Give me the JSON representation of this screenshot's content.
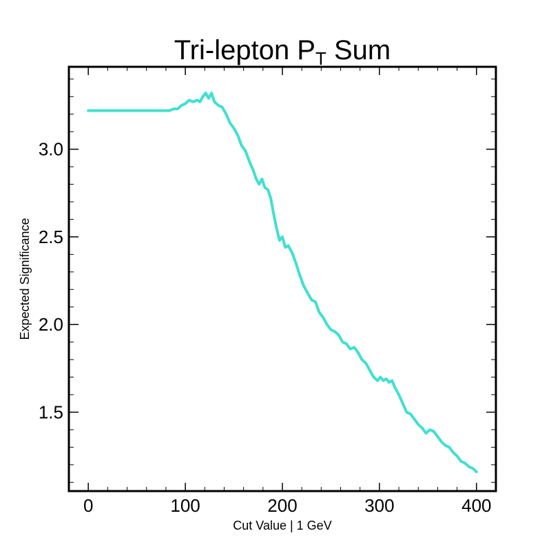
{
  "chart_data": {
    "type": "line",
    "title_main": "Tri-lepton P",
    "title_subscript": "T",
    "title_suffix": " Sum",
    "xlabel": "Cut Value | 1 GeV",
    "ylabel": "Expected Significance",
    "xlim": [
      -20,
      420
    ],
    "ylim": [
      1.05,
      3.47
    ],
    "x_ticks": [
      0,
      100,
      200,
      300,
      400
    ],
    "x_tick_labels": [
      "0",
      "100",
      "200",
      "300",
      "400"
    ],
    "y_ticks": [
      1.5,
      2.0,
      2.5,
      3.0
    ],
    "y_tick_labels": [
      "1.5",
      "2.0",
      "2.5",
      "3.0"
    ],
    "grid": false,
    "series": [
      {
        "color": "#40e0d0",
        "x": [
          0,
          20,
          40,
          60,
          80,
          84,
          88,
          92,
          96,
          100,
          104,
          108,
          112,
          115,
          118,
          121,
          124,
          127,
          130,
          134,
          138,
          142,
          146,
          150,
          154,
          158,
          162,
          166,
          170,
          173,
          176,
          179,
          182,
          185,
          188,
          191,
          194,
          197,
          200,
          203,
          206,
          210,
          214,
          218,
          222,
          226,
          230,
          234,
          238,
          242,
          246,
          250,
          254,
          258,
          262,
          266,
          270,
          274,
          278,
          282,
          286,
          290,
          294,
          298,
          301,
          304,
          307,
          310,
          313,
          316,
          320,
          324,
          328,
          332,
          336,
          340,
          344,
          348,
          352,
          356,
          360,
          364,
          368,
          372,
          376,
          380,
          384,
          388,
          392,
          396,
          400
        ],
        "y": [
          3.22,
          3.22,
          3.22,
          3.22,
          3.22,
          3.22,
          3.23,
          3.23,
          3.25,
          3.26,
          3.28,
          3.27,
          3.28,
          3.27,
          3.3,
          3.32,
          3.29,
          3.32,
          3.27,
          3.25,
          3.24,
          3.2,
          3.15,
          3.12,
          3.08,
          3.02,
          2.99,
          2.93,
          2.88,
          2.83,
          2.8,
          2.83,
          2.78,
          2.77,
          2.72,
          2.63,
          2.55,
          2.48,
          2.5,
          2.44,
          2.45,
          2.41,
          2.35,
          2.28,
          2.22,
          2.18,
          2.14,
          2.13,
          2.07,
          2.04,
          2.0,
          1.97,
          1.96,
          1.94,
          1.9,
          1.89,
          1.86,
          1.87,
          1.84,
          1.8,
          1.78,
          1.74,
          1.7,
          1.68,
          1.7,
          1.68,
          1.69,
          1.67,
          1.68,
          1.64,
          1.6,
          1.55,
          1.5,
          1.49,
          1.46,
          1.43,
          1.41,
          1.38,
          1.4,
          1.39,
          1.36,
          1.33,
          1.31,
          1.3,
          1.27,
          1.25,
          1.22,
          1.21,
          1.19,
          1.18,
          1.16
        ]
      }
    ]
  }
}
